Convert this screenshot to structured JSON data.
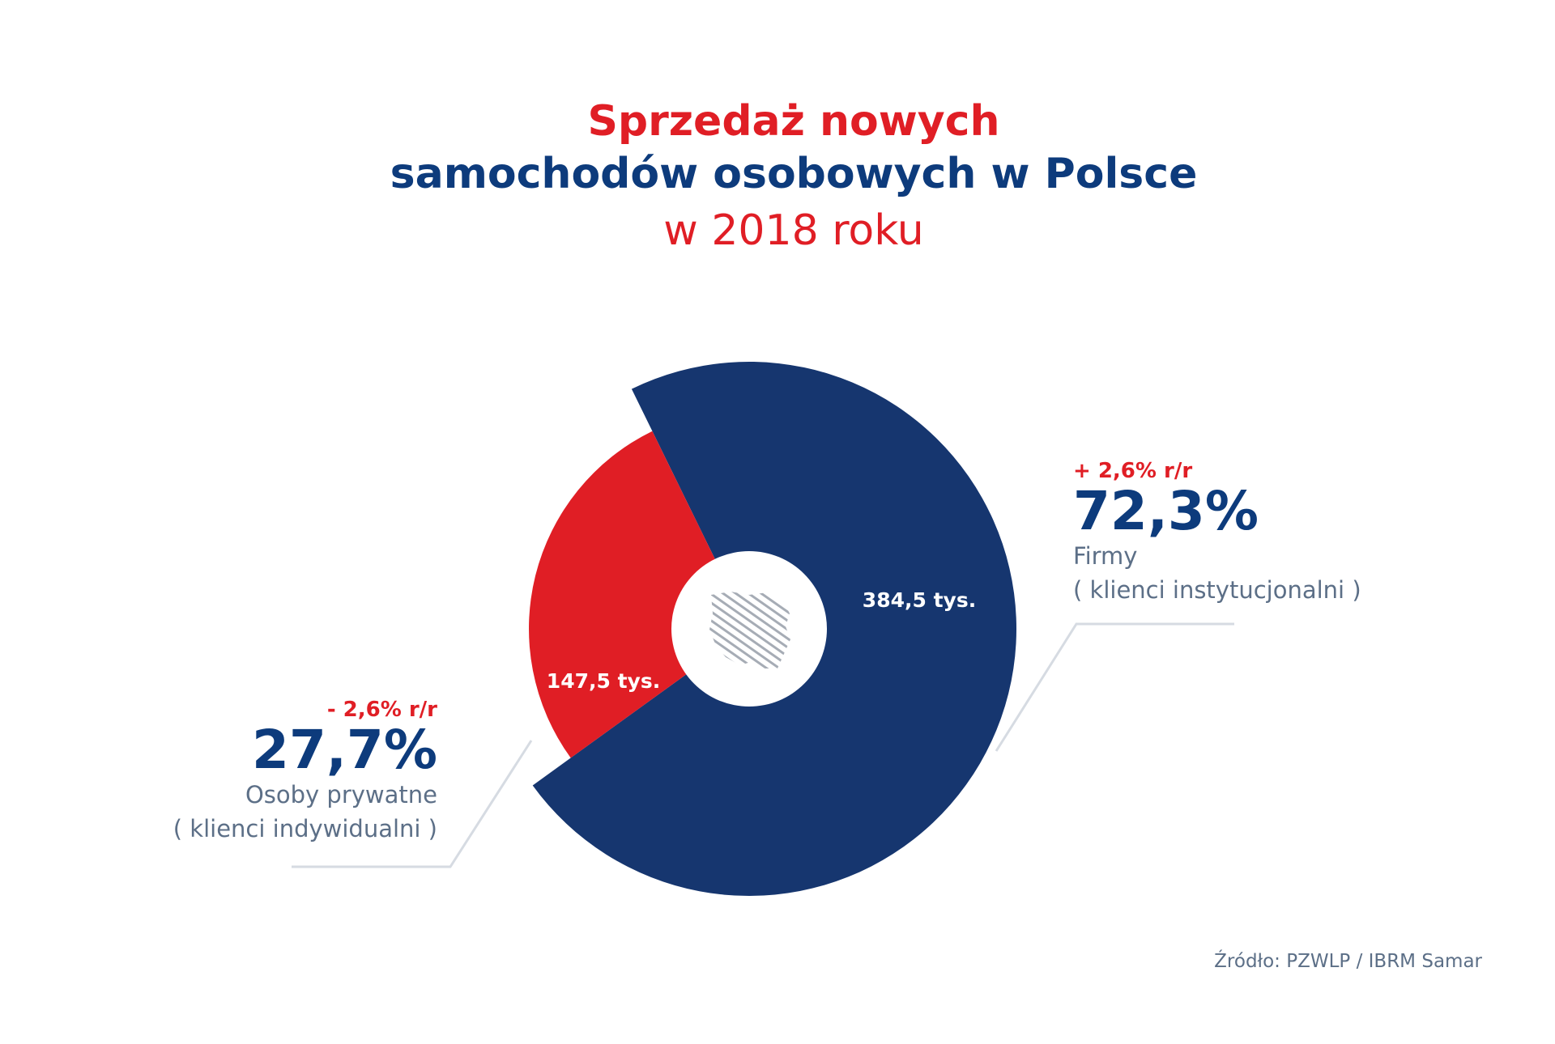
{
  "header": {
    "title_line1": "Sprzedaż nowych",
    "title_line2": "samochodów osobowych w Polsce",
    "title_line3": "w 2018 roku"
  },
  "colors": {
    "red": "#e01e25",
    "navy": "#0d3b7c",
    "slice_navy": "#16366f",
    "slice_red": "#e01e25",
    "gray_text": "#5c6f87"
  },
  "chart_data": {
    "type": "pie",
    "categories": [
      "Osoby prywatne",
      "Firmy"
    ],
    "values": [
      147.5,
      384.5
    ],
    "value_labels": [
      "147,5 tys.",
      "384,5 tys."
    ],
    "shares": [
      27.7,
      72.3
    ],
    "share_labels": [
      "27,7%",
      "72,3%"
    ],
    "yoy_change_labels": [
      "- 2,6% r/r",
      "+ 2,6% r/r"
    ],
    "subcategories": [
      "( klienci indywidualni )",
      "( klienci instytucjonalni )"
    ]
  },
  "source": "Źródło: PZWLP / IBRM Samar"
}
